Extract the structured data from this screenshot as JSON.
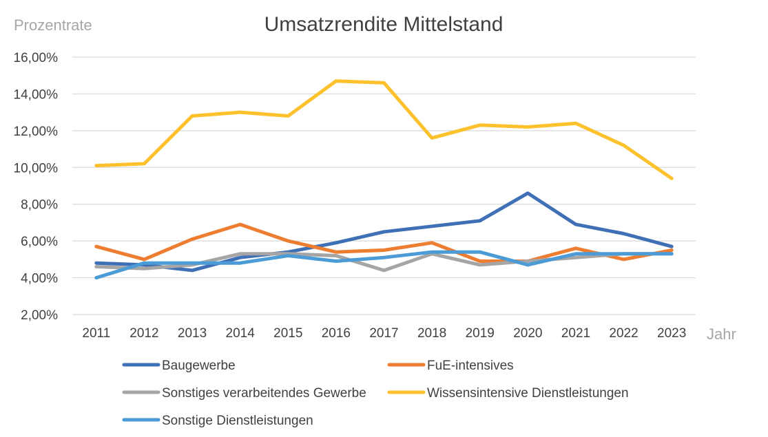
{
  "chart_data": {
    "type": "line",
    "title": "Umsatzrendite Mittelstand",
    "ylabel": "Prozentrate",
    "xlabel": "Jahr",
    "ylim": [
      2,
      16
    ],
    "ytick_step": 2,
    "ytick_labels": [
      "2,00%",
      "4,00%",
      "6,00%",
      "8,00%",
      "10,00%",
      "12,00%",
      "14,00%",
      "16,00%"
    ],
    "categories": [
      "2011",
      "2012",
      "2013",
      "2014",
      "2015",
      "2016",
      "2017",
      "2018",
      "2019",
      "2020",
      "2021",
      "2022",
      "2023"
    ],
    "grid": true,
    "legend_position": "bottom",
    "series": [
      {
        "name": "Baugewerbe",
        "color": "#3f6fb5",
        "values": [
          4.8,
          4.7,
          4.4,
          5.1,
          5.4,
          5.9,
          6.5,
          6.8,
          7.1,
          8.6,
          6.9,
          6.4,
          5.7
        ]
      },
      {
        "name": "FuE-intensives",
        "color": "#ed7d31",
        "values": [
          5.7,
          5.0,
          6.1,
          6.9,
          6.0,
          5.4,
          5.5,
          5.9,
          4.9,
          4.9,
          5.6,
          5.0,
          5.5
        ]
      },
      {
        "name": "Sonstiges verarbeitendes Gewerbe",
        "color": "#a5a5a5",
        "values": [
          4.6,
          4.5,
          4.7,
          5.3,
          5.3,
          5.2,
          4.4,
          5.3,
          4.7,
          4.9,
          5.1,
          5.3,
          5.3
        ]
      },
      {
        "name": "Wissensintensive Dienstleistungen",
        "color": "#fdc12d",
        "values": [
          10.1,
          10.2,
          12.8,
          13.0,
          12.8,
          14.7,
          14.6,
          11.6,
          12.3,
          12.2,
          12.4,
          11.2,
          9.4
        ]
      },
      {
        "name": "Sonstige Dienstleistungen",
        "color": "#4a9bd6",
        "values": [
          4.0,
          4.8,
          4.8,
          4.8,
          5.2,
          4.9,
          5.1,
          5.4,
          5.4,
          4.7,
          5.3,
          5.3,
          5.3
        ]
      }
    ]
  }
}
